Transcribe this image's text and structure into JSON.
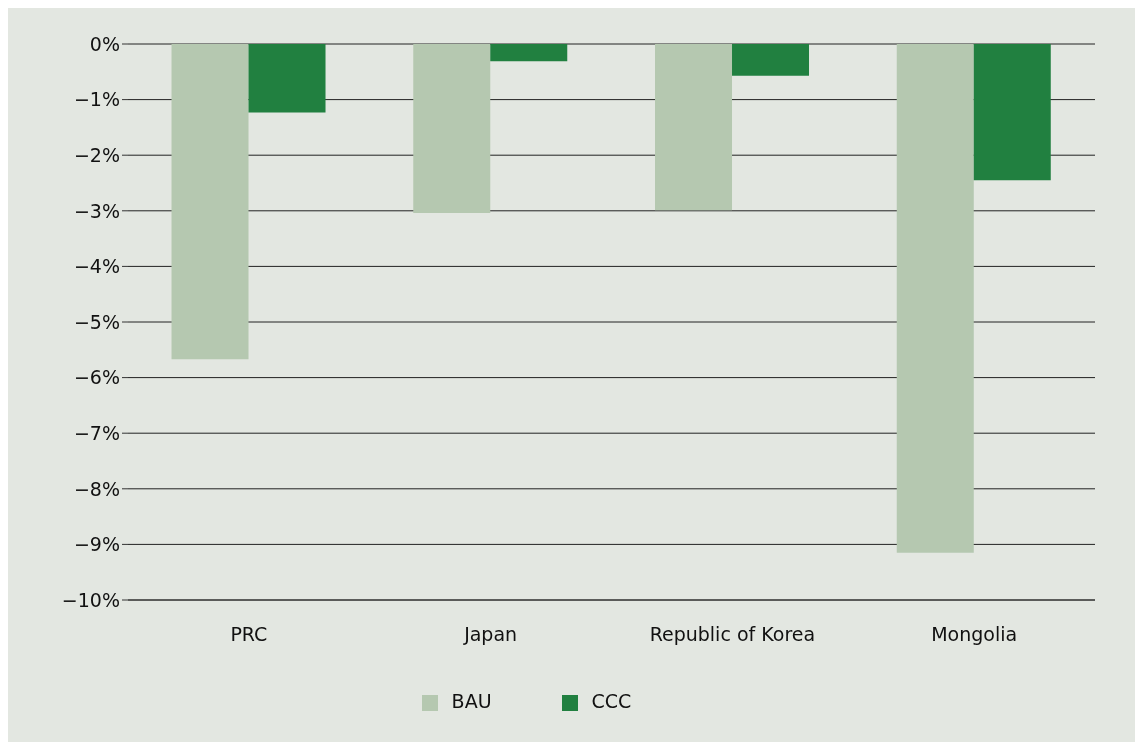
{
  "chart_data": {
    "type": "bar",
    "categories": [
      "PRC",
      "Japan",
      "Republic of Korea",
      "Mongolia"
    ],
    "series": [
      {
        "name": "BAU",
        "color": "#b5c8b0",
        "values": [
          -5.67,
          -3.04,
          -2.99,
          -9.15
        ]
      },
      {
        "name": "CCC",
        "color": "#218040",
        "values": [
          -1.23,
          -0.31,
          -0.57,
          -2.45
        ]
      }
    ],
    "ylim": [
      -10,
      0
    ],
    "yticks": [
      {
        "value": 0,
        "label": "0%"
      },
      {
        "value": -1,
        "label": "−1%"
      },
      {
        "value": -2,
        "label": "−2%"
      },
      {
        "value": -3,
        "label": "−3%"
      },
      {
        "value": -4,
        "label": "−4%"
      },
      {
        "value": -5,
        "label": "−5%"
      },
      {
        "value": -6,
        "label": "−6%"
      },
      {
        "value": -7,
        "label": "−7%"
      },
      {
        "value": -8,
        "label": "−8%"
      },
      {
        "value": -9,
        "label": "−9%"
      },
      {
        "value": -10,
        "label": "−10%"
      }
    ],
    "grid": "y",
    "legend": "bottom"
  }
}
